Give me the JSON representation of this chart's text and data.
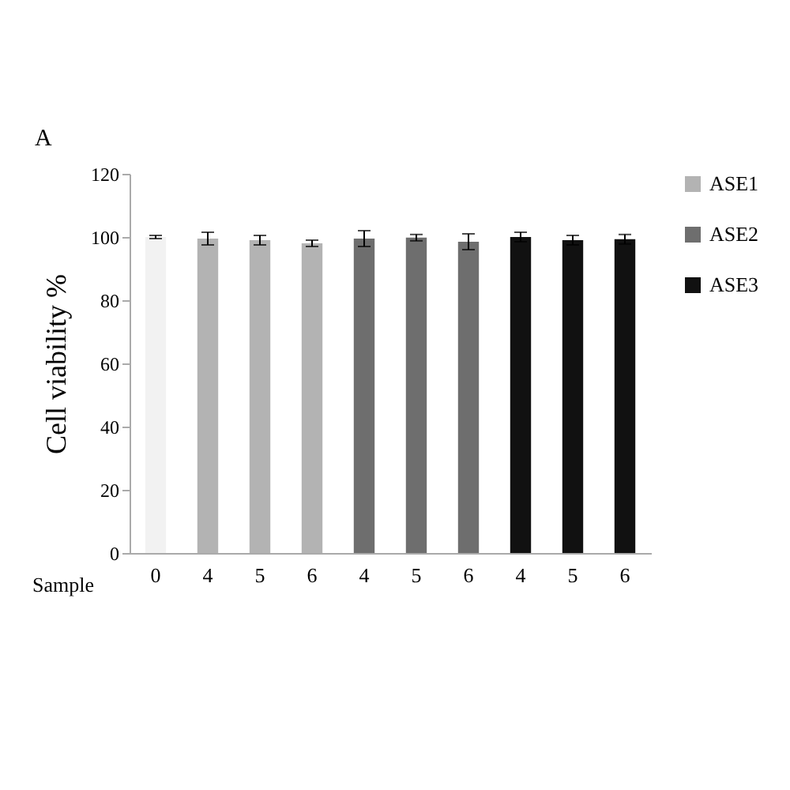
{
  "chart_data": {
    "type": "bar",
    "xlabel": "Sample",
    "ylabel": "Cell viability %",
    "annotations": [
      "A"
    ],
    "categories": [
      "0",
      "4",
      "5",
      "6",
      "4",
      "5",
      "6",
      "4",
      "5",
      "6"
    ],
    "series": [
      {
        "color": "#f2f2f2",
        "values": [
          100,
          null,
          null,
          null,
          null,
          null,
          null,
          null,
          null,
          null
        ],
        "errors": [
          0.5,
          null,
          null,
          null,
          null,
          null,
          null,
          null,
          null,
          null
        ]
      },
      {
        "name": "ASE1",
        "color": "#b3b3b3",
        "values": [
          null,
          99.5,
          99,
          98,
          null,
          null,
          null,
          null,
          null,
          null
        ],
        "errors": [
          null,
          2,
          1.5,
          1,
          null,
          null,
          null,
          null,
          null,
          null
        ]
      },
      {
        "name": "ASE2",
        "color": "#6e6e6e",
        "values": [
          null,
          null,
          null,
          null,
          99.5,
          99.8,
          98.5,
          null,
          null,
          null
        ],
        "errors": [
          null,
          null,
          null,
          null,
          2.5,
          1,
          2.5,
          null,
          null,
          null
        ]
      },
      {
        "name": "ASE3",
        "color": "#111111",
        "values": [
          null,
          null,
          null,
          null,
          null,
          null,
          null,
          100,
          99,
          99.3
        ],
        "errors": [
          null,
          null,
          null,
          null,
          null,
          null,
          null,
          1.5,
          1.5,
          1.5
        ]
      }
    ],
    "ylim": [
      0,
      120
    ],
    "yticks": [
      0,
      20,
      40,
      60,
      80,
      100,
      120
    ],
    "grid": false,
    "legend": "right"
  }
}
